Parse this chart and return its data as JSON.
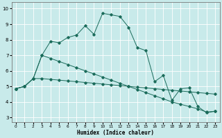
{
  "xlabel": "Humidex (Indice chaleur)",
  "bg_color": "#c8eaea",
  "grid_color": "#ffffff",
  "line_color": "#1a6b5a",
  "xlim": [
    -0.5,
    23.5
  ],
  "ylim": [
    2.7,
    10.4
  ],
  "xticks": [
    0,
    1,
    2,
    3,
    4,
    5,
    6,
    7,
    8,
    9,
    10,
    11,
    12,
    13,
    14,
    15,
    16,
    17,
    18,
    19,
    20,
    21,
    22,
    23
  ],
  "yticks": [
    3,
    4,
    5,
    6,
    7,
    8,
    9,
    10
  ],
  "line1_x": [
    0,
    1,
    2,
    3,
    4,
    5,
    6,
    7,
    8,
    9,
    10,
    11,
    12,
    13,
    14,
    15,
    16,
    17,
    18,
    19,
    20,
    21,
    22,
    23
  ],
  "line1_y": [
    4.85,
    5.0,
    5.5,
    5.5,
    5.45,
    5.4,
    5.35,
    5.3,
    5.25,
    5.2,
    5.15,
    5.1,
    5.05,
    5.0,
    4.95,
    4.9,
    4.85,
    4.8,
    4.75,
    4.7,
    4.65,
    4.6,
    4.55,
    4.5
  ],
  "line2_x": [
    0,
    1,
    2,
    3,
    4,
    5,
    6,
    7,
    8,
    9,
    10,
    11,
    12,
    13,
    14,
    15,
    16,
    17,
    18,
    19,
    20,
    21,
    22,
    23
  ],
  "line2_y": [
    4.85,
    5.0,
    5.5,
    7.0,
    7.9,
    7.8,
    8.15,
    8.3,
    8.9,
    8.35,
    9.7,
    9.6,
    9.5,
    8.8,
    7.5,
    7.3,
    5.3,
    5.7,
    4.1,
    4.85,
    4.9,
    3.7,
    3.3,
    3.4
  ],
  "line3_x": [
    0,
    1,
    2,
    3,
    4,
    5,
    6,
    7,
    8,
    9,
    10,
    11,
    12,
    13,
    14,
    15,
    16,
    17,
    18,
    19,
    20,
    21,
    22,
    23
  ],
  "line3_y": [
    4.85,
    5.0,
    5.5,
    7.0,
    6.8,
    6.6,
    6.4,
    6.2,
    6.0,
    5.8,
    5.6,
    5.4,
    5.2,
    5.0,
    4.8,
    4.6,
    4.4,
    4.2,
    4.0,
    3.85,
    3.7,
    3.55,
    3.35,
    3.4
  ],
  "xlabel_fontsize": 5.5,
  "tick_fontsize_x": 4.2,
  "tick_fontsize_y": 5.0
}
